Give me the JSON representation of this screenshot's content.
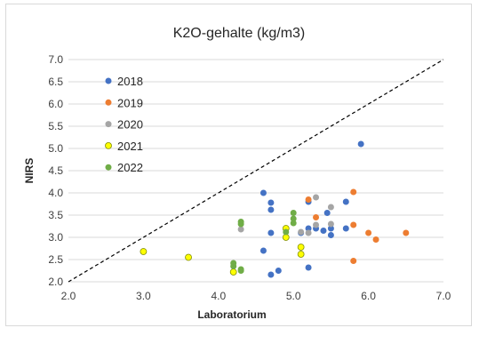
{
  "chart_data": {
    "type": "scatter",
    "title": "K2O-gehalte (kg/m3)",
    "xlabel": "Laboratorium",
    "ylabel": "NIRS",
    "xlim": [
      2.0,
      7.0
    ],
    "ylim": [
      2.0,
      7.0
    ],
    "x_ticks": [
      "2.0",
      "3.0",
      "4.0",
      "5.0",
      "6.0",
      "7.0"
    ],
    "y_ticks": [
      "2.0",
      "2.5",
      "3.0",
      "3.5",
      "4.0",
      "4.5",
      "5.0",
      "5.5",
      "6.0",
      "6.5",
      "7.0"
    ],
    "grid": "horizontal",
    "legend_position": "top-left",
    "reference_line": {
      "style": "dashed",
      "from": [
        2.0,
        2.0
      ],
      "to": [
        7.0,
        7.0
      ]
    },
    "series": [
      {
        "name": "2018",
        "color": "#4472c4",
        "points": [
          [
            4.6,
            4.0
          ],
          [
            4.7,
            3.78
          ],
          [
            4.7,
            3.62
          ],
          [
            4.6,
            2.7
          ],
          [
            4.7,
            3.1
          ],
          [
            4.7,
            2.16
          ],
          [
            4.8,
            2.25
          ],
          [
            5.2,
            3.8
          ],
          [
            5.1,
            3.1
          ],
          [
            5.2,
            3.2
          ],
          [
            5.2,
            2.32
          ],
          [
            5.3,
            3.2
          ],
          [
            5.4,
            3.15
          ],
          [
            5.45,
            3.55
          ],
          [
            5.5,
            3.2
          ],
          [
            5.5,
            3.05
          ],
          [
            5.7,
            3.8
          ],
          [
            5.9,
            5.1
          ],
          [
            5.7,
            3.2
          ]
        ]
      },
      {
        "name": "2019",
        "color": "#ed7d31",
        "points": [
          [
            5.2,
            3.85
          ],
          [
            5.3,
            3.45
          ],
          [
            5.8,
            4.02
          ],
          [
            5.8,
            3.28
          ],
          [
            5.8,
            2.47
          ],
          [
            6.0,
            3.1
          ],
          [
            6.1,
            2.95
          ],
          [
            6.5,
            3.1
          ]
        ]
      },
      {
        "name": "2020",
        "color": "#a5a5a5",
        "points": [
          [
            4.3,
            3.18
          ],
          [
            5.1,
            3.12
          ],
          [
            5.2,
            3.1
          ],
          [
            5.3,
            3.9
          ],
          [
            5.5,
            3.68
          ],
          [
            5.5,
            3.3
          ],
          [
            5.3,
            3.28
          ]
        ]
      },
      {
        "name": "2021",
        "color": "#ffff00",
        "points": [
          [
            3.0,
            2.68
          ],
          [
            3.6,
            2.55
          ],
          [
            4.2,
            2.22
          ],
          [
            4.9,
            3.2
          ],
          [
            4.9,
            3.0
          ],
          [
            5.1,
            2.78
          ],
          [
            5.1,
            2.62
          ]
        ]
      },
      {
        "name": "2022",
        "color": "#70ad47",
        "points": [
          [
            4.2,
            2.42
          ],
          [
            4.2,
            2.35
          ],
          [
            4.3,
            3.35
          ],
          [
            4.3,
            3.3
          ],
          [
            4.3,
            2.28
          ],
          [
            4.3,
            2.25
          ],
          [
            5.0,
            3.55
          ],
          [
            5.0,
            3.42
          ],
          [
            5.0,
            3.32
          ],
          [
            4.9,
            3.12
          ]
        ]
      }
    ]
  }
}
